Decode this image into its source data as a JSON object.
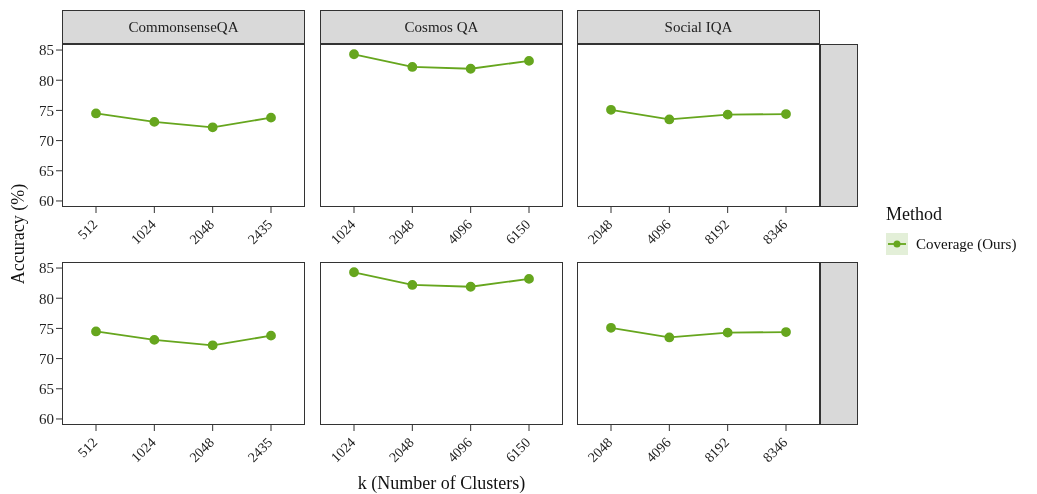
{
  "chart_data": [
    {
      "type": "line",
      "title": "CommonsenseQA",
      "ylabel": "Accuracy (%)",
      "categories": [
        "512",
        "1024",
        "2048",
        "2435"
      ],
      "series": [
        {
          "color": "#66a61e",
          "values": [
            74.5,
            73.1,
            72.2,
            73.8
          ]
        }
      ],
      "ylim": [
        59,
        86
      ],
      "yticks": [
        60,
        65,
        70,
        75,
        80,
        85
      ],
      "marker": "circle"
    },
    {
      "type": "line",
      "title": "Cosmos QA",
      "categories": [
        "1024",
        "2048",
        "4096",
        "6150"
      ],
      "series": [
        {
          "color": "#66a61e",
          "values": [
            84.3,
            82.2,
            81.9,
            83.2
          ]
        }
      ],
      "ylim": [
        59,
        86
      ],
      "yticks": [
        60,
        65,
        70,
        75,
        80,
        85
      ],
      "marker": "circle",
      "tick_labels": "x"
    },
    {
      "type": "line",
      "title": "Social IQA",
      "legend_title": "Method",
      "legend": "right",
      "categories": [
        "2048",
        "4096",
        "8192",
        "8346"
      ],
      "series": [
        {
          "name": "Coverage (Ours)",
          "color": "#66a61e",
          "values": [
            75.1,
            73.5,
            74.3,
            74.4
          ]
        }
      ],
      "ylim": [
        59,
        86
      ],
      "yticks": [
        60,
        65,
        70,
        75,
        80,
        85
      ],
      "marker": "circle",
      "tick_labels": "x"
    },
    {
      "type": "line",
      "categories": [
        "512",
        "1024",
        "2048",
        "2435"
      ],
      "series": [
        {
          "color": "#66a61e",
          "values": [
            74.5,
            73.1,
            72.2,
            73.8
          ]
        }
      ],
      "ylim": [
        59,
        86
      ],
      "yticks": [
        60,
        65,
        70,
        75,
        80,
        85
      ],
      "marker": "circle"
    },
    {
      "type": "line",
      "xlabel": "k (Number of Clusters)",
      "categories": [
        "1024",
        "2048",
        "4096",
        "6150"
      ],
      "series": [
        {
          "color": "#66a61e",
          "values": [
            84.3,
            82.2,
            81.9,
            83.2
          ]
        }
      ],
      "ylim": [
        59,
        86
      ],
      "yticks": [
        60,
        65,
        70,
        75,
        80,
        85
      ],
      "marker": "circle",
      "tick_labels": "x"
    },
    {
      "type": "line",
      "categories": [
        "2048",
        "4096",
        "8192",
        "8346"
      ],
      "series": [
        {
          "color": "#66a61e",
          "values": [
            75.1,
            73.5,
            74.3,
            74.4
          ]
        }
      ],
      "ylim": [
        59,
        86
      ],
      "yticks": [
        60,
        65,
        70,
        75,
        80,
        85
      ],
      "marker": "circle",
      "tick_labels": "x"
    }
  ]
}
